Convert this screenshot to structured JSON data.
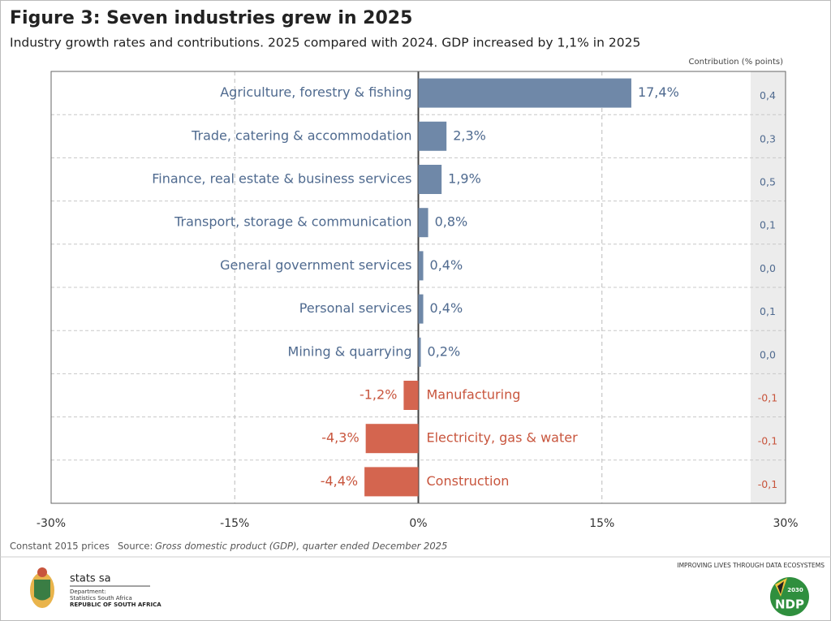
{
  "chart_data": {
    "type": "hbar",
    "title": "Figure 3: Seven industries grew in 2025",
    "subtitle": "Industry growth rates and contributions. 2025 compared with 2024. GDP increased by 1,1% in 2025",
    "categories": [
      "Agriculture, forestry & fishing",
      "Trade, catering & accommodation",
      "Finance, real estate & business services",
      "Transport, storage & communication",
      "General government services",
      "Personal services",
      "Mining & quarrying",
      "Manufacturing",
      "Electricity, gas & water",
      "Construction"
    ],
    "values": [
      17.4,
      2.3,
      1.9,
      0.8,
      0.4,
      0.4,
      0.2,
      -1.2,
      -4.3,
      -4.4
    ],
    "value_labels": [
      "17,4%",
      "2,3%",
      "1,9%",
      "0,8%",
      "0,4%",
      "0,4%",
      "0,2%",
      "-1,2%",
      "-4,3%",
      "-4,4%"
    ],
    "color": "#6f88a8",
    "negative_color": "#d4654f",
    "xlim": [
      -30,
      30
    ],
    "xticks": [
      {
        "value": -30,
        "label": "-30%"
      },
      {
        "value": -15,
        "label": "-15%"
      },
      {
        "value": 0,
        "label": "0%"
      },
      {
        "value": 15,
        "label": "15%"
      },
      {
        "value": 30,
        "label": "30%"
      }
    ],
    "grid": true,
    "contributions": {
      "label": "Contribution (% points)",
      "values": [
        0.4,
        0.3,
        0.5,
        0.1,
        0.0,
        0.1,
        0.0,
        -0.1,
        -0.1,
        -0.1
      ],
      "value_labels": [
        "0,4",
        "0,3",
        "0,5",
        "0,1",
        "0,0",
        "0,1",
        "0,0",
        "-0,1",
        "-0,1",
        "-0,1"
      ]
    },
    "note": "Constant 2015 prices",
    "source_label": "Source:",
    "source": "Gross domestic product (GDP), quarter ended December 2025"
  },
  "footer": {
    "logo": "stats sa",
    "department": "Department:",
    "org": "Statistics South Africa",
    "country": "REPUBLIC OF SOUTH AFRICA",
    "tagline": "IMPROVING LIVES THROUGH DATA ECOSYSTEMS",
    "ndp": "NDP",
    "ndp_year": "2030"
  }
}
